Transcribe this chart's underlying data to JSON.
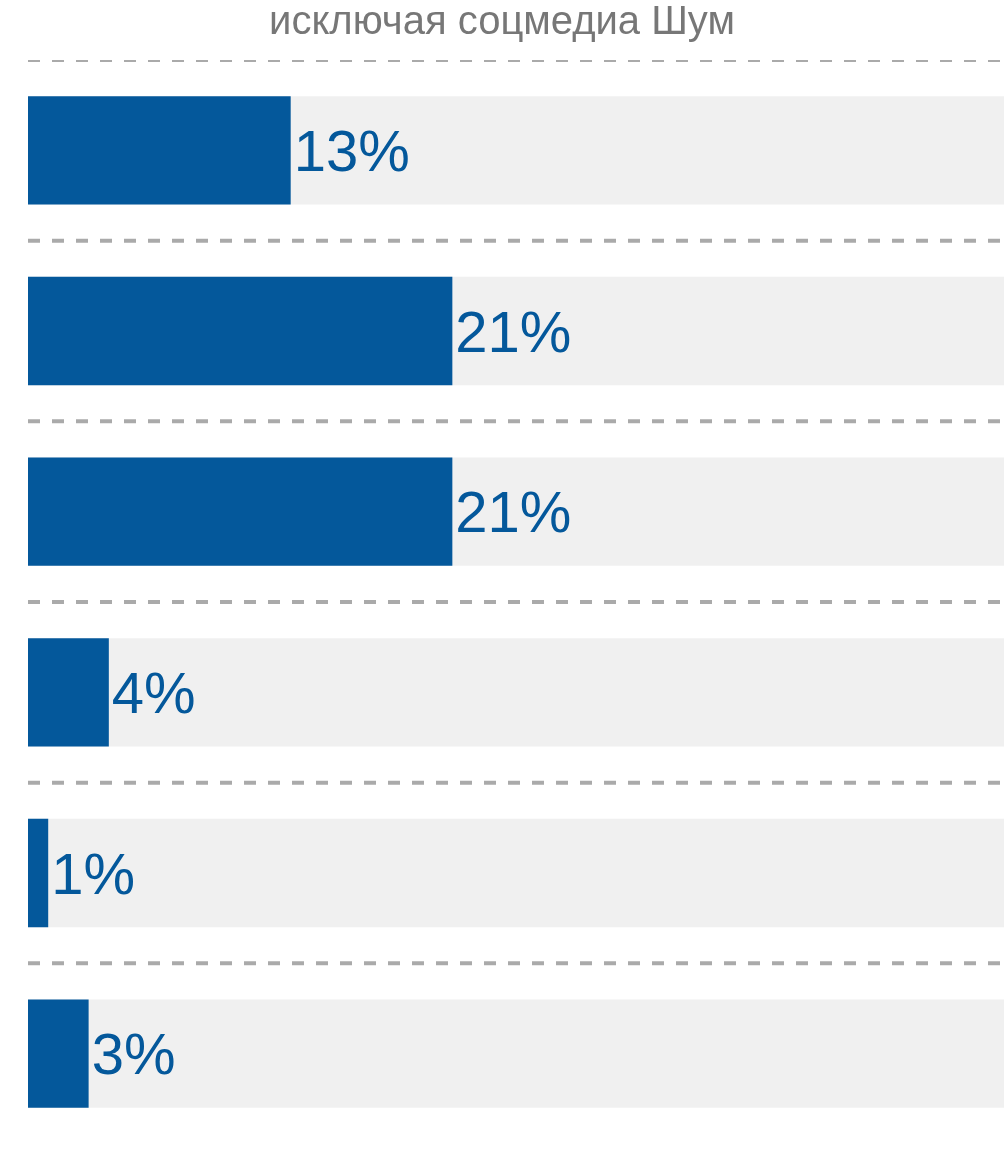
{
  "chart_data": {
    "type": "bar",
    "orientation": "horizontal",
    "title": "исключая соцмедиа Шум",
    "categories": [
      null,
      null,
      null,
      null,
      null,
      null
    ],
    "values": [
      13,
      21,
      21,
      4,
      1,
      3
    ],
    "value_labels": [
      "13%",
      "21%",
      "21%",
      "4%",
      "1%",
      "3%"
    ],
    "color": "#04589b"
  }
}
